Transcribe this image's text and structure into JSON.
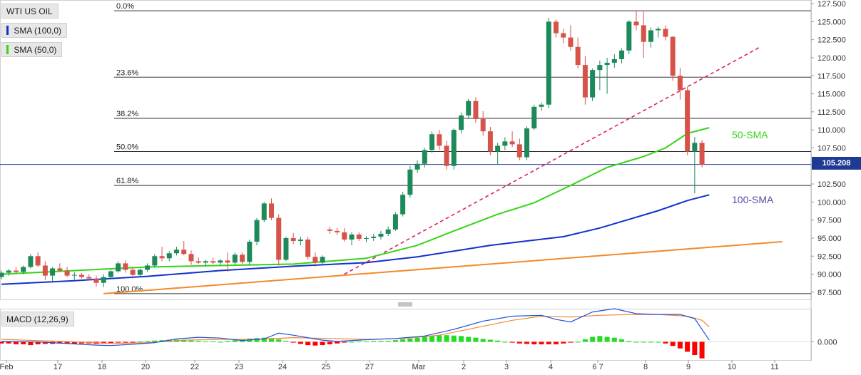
{
  "legend": {
    "instrument": "WTI US OIL",
    "sma100": "SMA (100,0)",
    "sma50": "SMA (50,0)",
    "macd": "MACD (12,26,9)"
  },
  "colors": {
    "up": "#1e8a5a",
    "down": "#d6534a",
    "sma50": "#35d416",
    "sma100": "#1231cc",
    "support": "#f28a2a",
    "trend": "#e01e5a",
    "macd_line": "#2050e0",
    "signal_line": "#f08a30",
    "hist_pos": "#22dd22",
    "hist_neg": "#ff0000"
  },
  "chart_data": {
    "type": "candlestick",
    "title": "",
    "y_axis_labels": [
      "127.500",
      "125.000",
      "122.500",
      "120.000",
      "117.500",
      "115.000",
      "112.500",
      "110.000",
      "107.500",
      "105.000",
      "102.500",
      "100.000",
      "97.500",
      "95.000",
      "92.500",
      "90.000",
      "87.500"
    ],
    "ylim": [
      86.5,
      128.0
    ],
    "x_axis_labels": [
      "Feb",
      "17",
      "18",
      "20",
      "22",
      "23",
      "24",
      "25",
      "27",
      "Mar",
      "2",
      "3",
      "4",
      "6 7",
      "8",
      "9",
      "10",
      "11"
    ],
    "last_price": "105.208",
    "fibonacci": [
      {
        "label": "0.0%",
        "value": 126.5
      },
      {
        "label": "23.6%",
        "value": 117.3
      },
      {
        "label": "38.2%",
        "value": 111.6
      },
      {
        "label": "50.0%",
        "value": 107.0
      },
      {
        "label": "61.8%",
        "value": 102.3
      },
      {
        "label": "100.0%",
        "value": 87.3
      }
    ],
    "annotations": {
      "sma50": "50-SMA",
      "sma100": "100-SMA"
    },
    "candles": [
      [
        89.6,
        90.5,
        89.3,
        90.2
      ],
      [
        90.2,
        90.7,
        89.8,
        90.5
      ],
      [
        90.5,
        91.0,
        90.1,
        90.3
      ],
      [
        90.3,
        91.2,
        90.0,
        91.0
      ],
      [
        91.0,
        92.8,
        90.8,
        92.5
      ],
      [
        92.5,
        93.0,
        91.0,
        91.2
      ],
      [
        91.2,
        91.8,
        89.2,
        89.8
      ],
      [
        89.8,
        91.0,
        88.8,
        90.8
      ],
      [
        90.8,
        91.5,
        90.3,
        90.5
      ],
      [
        90.5,
        91.0,
        89.6,
        89.8
      ],
      [
        89.8,
        90.3,
        89.2,
        89.9
      ],
      [
        89.9,
        90.2,
        89.4,
        89.6
      ],
      [
        89.6,
        90.0,
        89.2,
        89.4
      ],
      [
        89.4,
        89.8,
        88.3,
        88.8
      ],
      [
        88.8,
        90.0,
        88.2,
        89.6
      ],
      [
        89.6,
        90.6,
        89.3,
        90.4
      ],
      [
        90.4,
        91.8,
        90.2,
        91.5
      ],
      [
        91.5,
        91.9,
        90.2,
        90.6
      ],
      [
        90.6,
        91.0,
        89.4,
        89.9
      ],
      [
        89.9,
        90.8,
        89.6,
        90.6
      ],
      [
        90.6,
        91.5,
        90.3,
        91.2
      ],
      [
        91.2,
        92.8,
        90.9,
        92.5
      ],
      [
        92.5,
        93.8,
        91.8,
        92.2
      ],
      [
        92.2,
        93.2,
        91.8,
        92.9
      ],
      [
        92.9,
        93.8,
        92.6,
        93.4
      ],
      [
        93.4,
        94.6,
        92.6,
        92.8
      ],
      [
        92.8,
        93.3,
        91.3,
        91.8
      ],
      [
        91.8,
        92.3,
        91.4,
        91.6
      ],
      [
        91.6,
        92.0,
        91.1,
        91.8
      ],
      [
        91.8,
        92.3,
        91.4,
        91.6
      ],
      [
        91.6,
        92.1,
        91.2,
        91.9
      ],
      [
        91.9,
        93.0,
        90.3,
        91.6
      ],
      [
        91.6,
        93.0,
        91.3,
        92.7
      ],
      [
        92.7,
        93.0,
        91.4,
        91.7
      ],
      [
        91.7,
        94.8,
        91.2,
        94.5
      ],
      [
        94.5,
        97.8,
        94.0,
        97.5
      ],
      [
        97.5,
        100.0,
        97.2,
        99.8
      ],
      [
        99.8,
        100.5,
        97.5,
        97.8
      ],
      [
        97.8,
        98.3,
        91.2,
        92.0
      ],
      [
        92.0,
        95.2,
        91.8,
        95.0
      ],
      [
        95.0,
        95.7,
        94.2,
        94.6
      ],
      [
        94.6,
        95.2,
        94.0,
        94.8
      ],
      [
        94.8,
        95.2,
        92.0,
        92.4
      ],
      [
        92.4,
        93.0,
        91.0,
        91.6
      ],
      [
        91.6,
        92.6,
        91.2,
        92.4
      ],
      [
        96.2,
        96.6,
        95.6,
        96.0
      ],
      [
        96.0,
        96.4,
        95.4,
        95.8
      ],
      [
        95.8,
        96.4,
        94.5,
        94.8
      ],
      [
        94.8,
        95.8,
        94.0,
        95.5
      ],
      [
        95.5,
        95.8,
        94.6,
        94.9
      ],
      [
        94.9,
        95.3,
        94.4,
        95.0
      ],
      [
        95.0,
        95.6,
        94.6,
        95.2
      ],
      [
        95.2,
        96.0,
        94.8,
        95.6
      ],
      [
        95.6,
        96.6,
        95.3,
        96.2
      ],
      [
        96.2,
        98.6,
        96.0,
        98.3
      ],
      [
        98.3,
        101.4,
        98.0,
        101.0
      ],
      [
        101.0,
        105.0,
        100.6,
        104.5
      ],
      [
        104.5,
        105.8,
        104.0,
        105.3
      ],
      [
        105.3,
        107.5,
        104.8,
        107.2
      ],
      [
        107.2,
        109.8,
        106.8,
        109.4
      ],
      [
        109.4,
        110.0,
        107.2,
        107.8
      ],
      [
        107.8,
        108.5,
        104.5,
        105.0
      ],
      [
        105.0,
        110.2,
        104.5,
        110.0
      ],
      [
        110.0,
        112.4,
        109.5,
        112.0
      ],
      [
        112.0,
        114.3,
        111.6,
        114.0
      ],
      [
        114.0,
        114.5,
        111.0,
        111.5
      ],
      [
        111.5,
        112.6,
        109.2,
        109.8
      ],
      [
        109.8,
        110.4,
        106.5,
        107.0
      ],
      [
        107.0,
        108.2,
        105.2,
        107.8
      ],
      [
        107.8,
        109.0,
        107.2,
        108.4
      ],
      [
        108.4,
        109.8,
        107.6,
        108.0
      ],
      [
        108.0,
        108.8,
        105.8,
        106.2
      ],
      [
        106.2,
        110.5,
        105.8,
        110.2
      ],
      [
        110.2,
        113.5,
        110.0,
        113.2
      ],
      [
        113.2,
        113.8,
        112.6,
        113.5
      ],
      [
        113.5,
        125.5,
        113.0,
        125.0
      ],
      [
        125.0,
        125.3,
        122.8,
        123.4
      ],
      [
        123.4,
        124.0,
        122.0,
        122.8
      ],
      [
        122.8,
        124.5,
        121.0,
        121.5
      ],
      [
        121.5,
        122.8,
        118.5,
        119.0
      ],
      [
        119.0,
        120.2,
        113.5,
        114.5
      ],
      [
        114.5,
        118.5,
        114.0,
        118.3
      ],
      [
        118.3,
        119.6,
        115.5,
        119.0
      ],
      [
        119.0,
        120.0,
        115.0,
        119.3
      ],
      [
        119.3,
        120.5,
        118.6,
        119.8
      ],
      [
        119.8,
        121.3,
        119.2,
        121.0
      ],
      [
        121.0,
        125.2,
        120.5,
        125.0
      ],
      [
        125.0,
        126.6,
        123.8,
        124.5
      ],
      [
        124.5,
        126.4,
        120.0,
        122.2
      ],
      [
        122.2,
        124.2,
        121.4,
        123.8
      ],
      [
        123.8,
        124.3,
        122.8,
        124.0
      ],
      [
        124.0,
        124.5,
        122.4,
        122.9
      ],
      [
        122.9,
        123.0,
        116.8,
        117.5
      ],
      [
        117.5,
        118.6,
        114.2,
        115.5
      ],
      [
        115.5,
        116.0,
        106.5,
        107.0
      ],
      [
        107.0,
        109.0,
        101.2,
        108.2
      ],
      [
        108.2,
        108.6,
        104.8,
        105.2
      ]
    ],
    "sma50": [
      [
        0,
        90.0
      ],
      [
        20,
        91.0
      ],
      [
        40,
        91.4
      ],
      [
        50,
        92.2
      ],
      [
        57,
        94.0
      ],
      [
        62,
        96.0
      ],
      [
        68,
        98.3
      ],
      [
        73,
        99.9
      ],
      [
        78,
        102.3
      ],
      [
        83,
        104.8
      ],
      [
        88,
        106.3
      ],
      [
        91,
        107.5
      ],
      [
        94,
        109.5
      ],
      [
        97,
        110.3
      ]
    ],
    "sma100": [
      [
        0,
        88.6
      ],
      [
        10,
        89.1
      ],
      [
        20,
        89.7
      ],
      [
        30,
        90.5
      ],
      [
        40,
        91.1
      ],
      [
        50,
        91.6
      ],
      [
        57,
        92.4
      ],
      [
        62,
        93.2
      ],
      [
        67,
        94.0
      ],
      [
        72,
        94.6
      ],
      [
        77,
        95.2
      ],
      [
        82,
        96.4
      ],
      [
        86,
        97.6
      ],
      [
        90,
        98.8
      ],
      [
        94,
        100.2
      ],
      [
        97,
        101.0
      ]
    ],
    "support_line": [
      [
        14,
        87.3
      ],
      [
        107,
        94.5
      ]
    ],
    "trend_line": [
      [
        47,
        90.0
      ],
      [
        104,
        121.5
      ]
    ],
    "macd": {
      "label": "MACD (12,26,9)",
      "zero_tick": "0.000",
      "ylim": [
        -2.2,
        4.0
      ],
      "macd_line": [
        [
          0,
          0.05
        ],
        [
          5,
          -0.02
        ],
        [
          10,
          -0.25
        ],
        [
          13,
          -0.4
        ],
        [
          15,
          -0.45
        ],
        [
          18,
          -0.3
        ],
        [
          21,
          -0.1
        ],
        [
          24,
          0.35
        ],
        [
          27,
          0.55
        ],
        [
          30,
          0.45
        ],
        [
          33,
          0.15
        ],
        [
          36,
          0.35
        ],
        [
          38,
          1.05
        ],
        [
          40,
          0.8
        ],
        [
          44,
          0.2
        ],
        [
          46,
          0.05
        ],
        [
          50,
          0.25
        ],
        [
          54,
          0.4
        ],
        [
          58,
          0.7
        ],
        [
          62,
          1.5
        ],
        [
          66,
          2.5
        ],
        [
          70,
          3.1
        ],
        [
          74,
          3.2
        ],
        [
          76,
          2.7
        ],
        [
          78,
          2.4
        ],
        [
          81,
          3.6
        ],
        [
          84,
          4.0
        ],
        [
          87,
          3.4
        ],
        [
          90,
          3.3
        ],
        [
          93,
          3.3
        ],
        [
          95,
          2.8
        ],
        [
          97,
          0.2
        ]
      ],
      "signal_line": [
        [
          0,
          0.3
        ],
        [
          10,
          0.0
        ],
        [
          15,
          -0.2
        ],
        [
          20,
          -0.1
        ],
        [
          25,
          0.2
        ],
        [
          30,
          0.3
        ],
        [
          35,
          0.3
        ],
        [
          40,
          0.5
        ],
        [
          45,
          0.4
        ],
        [
          50,
          0.3
        ],
        [
          55,
          0.4
        ],
        [
          60,
          0.8
        ],
        [
          65,
          1.7
        ],
        [
          70,
          2.6
        ],
        [
          74,
          3.1
        ],
        [
          78,
          3.0
        ],
        [
          82,
          3.2
        ],
        [
          86,
          3.3
        ],
        [
          90,
          3.3
        ],
        [
          94,
          3.1
        ],
        [
          96,
          2.6
        ],
        [
          97,
          1.8
        ]
      ],
      "histogram": [
        -0.2,
        -0.2,
        -0.3,
        -0.3,
        -0.4,
        -0.3,
        -0.25,
        -0.25,
        -0.2,
        -0.2,
        -0.25,
        -0.2,
        -0.2,
        -0.25,
        -0.2,
        -0.15,
        -0.1,
        -0.1,
        -0.05,
        0.05,
        0.1,
        0.15,
        0.2,
        0.25,
        0.25,
        0.2,
        0.15,
        0.1,
        0.05,
        0.05,
        0.0,
        0.1,
        0.2,
        0.3,
        0.4,
        0.45,
        0.5,
        0.45,
        0.3,
        0.1,
        -0.1,
        -0.25,
        -0.4,
        -0.45,
        -0.4,
        -0.3,
        -0.2,
        -0.1,
        0.0,
        0.05,
        0.05,
        0.1,
        0.1,
        0.1,
        0.2,
        0.3,
        0.4,
        0.5,
        0.7,
        0.75,
        0.8,
        0.8,
        0.75,
        0.7,
        0.6,
        0.5,
        0.35,
        0.25,
        0.15,
        0.0,
        -0.1,
        -0.2,
        -0.25,
        -0.3,
        -0.3,
        -0.3,
        -0.3,
        -0.2,
        -0.1,
        0.0,
        0.3,
        0.6,
        0.7,
        0.6,
        0.5,
        0.3,
        0.1,
        0.0,
        0.0,
        0.0,
        0.0,
        -0.2,
        -0.5,
        -0.8,
        -1.2,
        -1.6,
        -2.0
      ]
    }
  }
}
